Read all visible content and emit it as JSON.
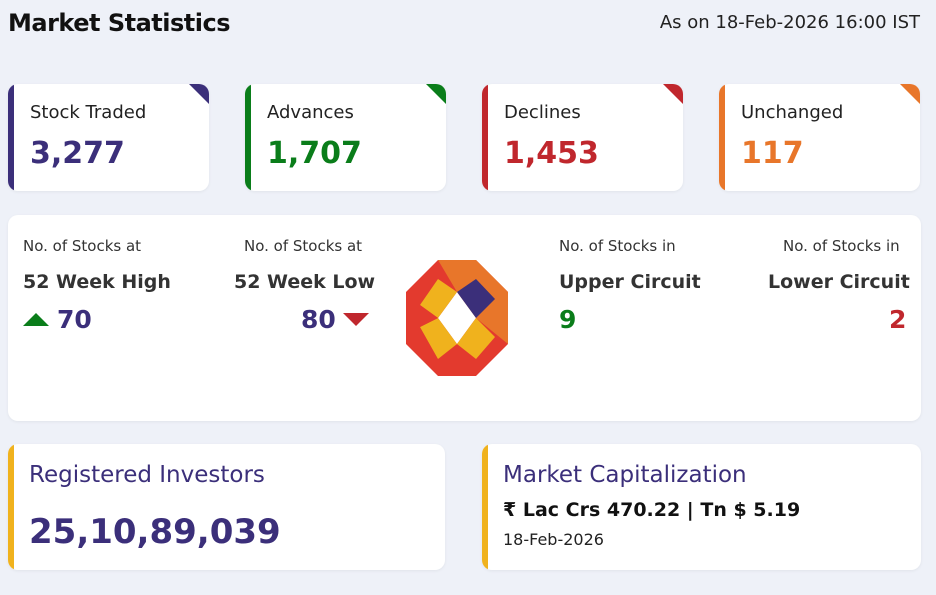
{
  "header": {
    "title": "Market Statistics",
    "as_on": "As on 18-Feb-2026 16:00 IST"
  },
  "stats": [
    {
      "label": "Stock Traded",
      "value": "3,277",
      "color": "#3b2f7a"
    },
    {
      "label": "Advances",
      "value": "1,707",
      "color": "#0a7d1a"
    },
    {
      "label": "Declines",
      "value": "1,453",
      "color": "#c0272d"
    },
    {
      "label": "Unchanged",
      "value": "117",
      "color": "#e8762a"
    }
  ],
  "week52": {
    "high": {
      "caption": "No. of Stocks at",
      "label": "52 Week High",
      "value": "70",
      "icon": "arrow-up-icon"
    },
    "low": {
      "caption": "No. of Stocks at",
      "label": "52 Week Low",
      "value": "80",
      "icon": "arrow-down-icon"
    }
  },
  "circuit": {
    "upper": {
      "caption": "No. of Stocks in",
      "label": "Upper Circuit",
      "value": "9"
    },
    "lower": {
      "caption": "No. of Stocks in",
      "label": "Lower Circuit",
      "value": "2"
    }
  },
  "registered_investors": {
    "label": "Registered Investors",
    "value": "25,10,89,039"
  },
  "market_cap": {
    "label": "Market Capitalization",
    "value": "₹ Lac Crs 470.22 | Tn $ 5.19",
    "date": "18-Feb-2026"
  }
}
